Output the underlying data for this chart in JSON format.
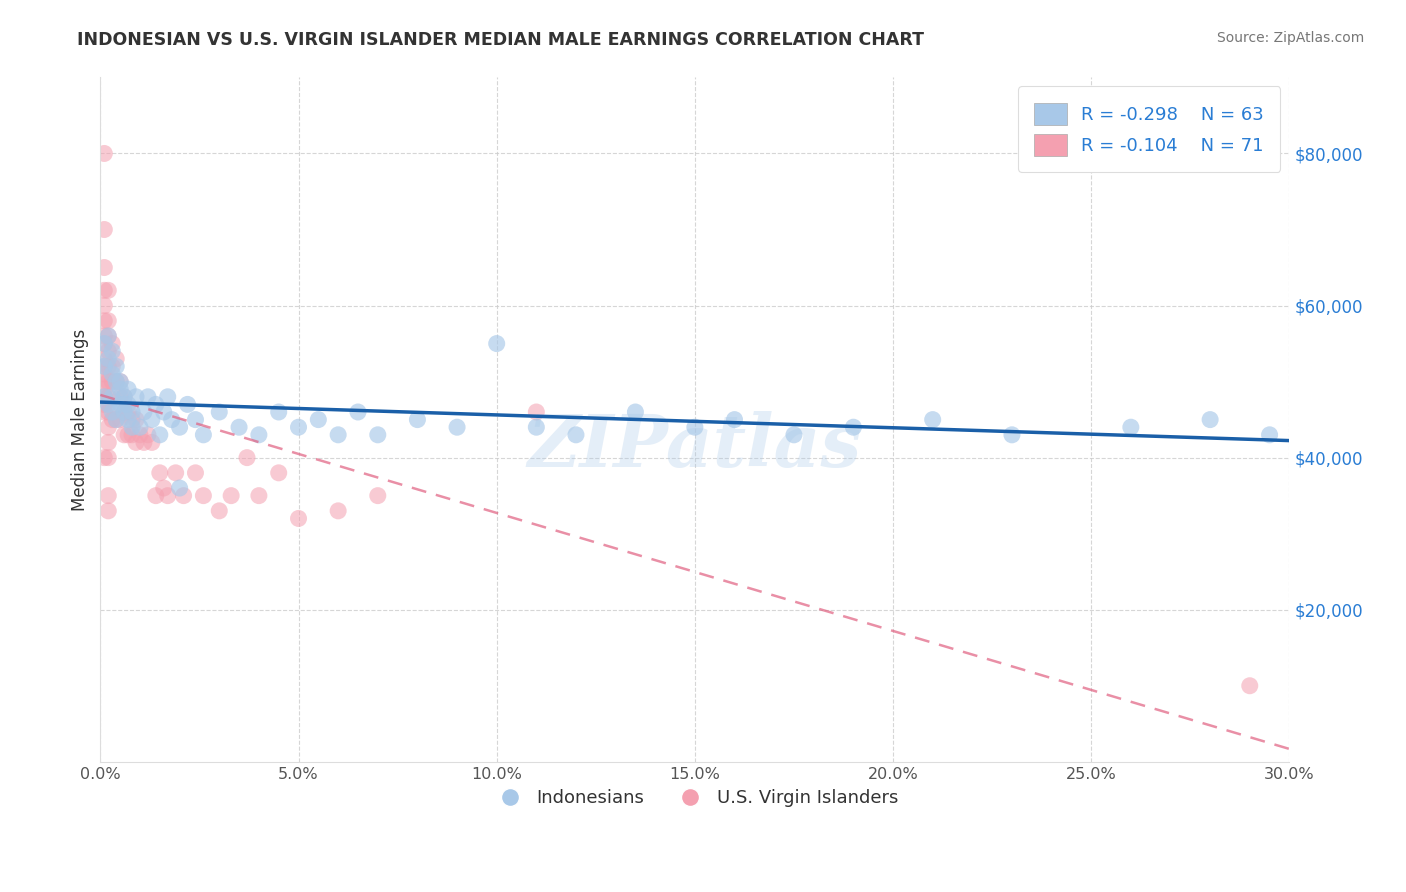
{
  "title": "INDONESIAN VS U.S. VIRGIN ISLANDER MEDIAN MALE EARNINGS CORRELATION CHART",
  "source": "Source: ZipAtlas.com",
  "ylabel": "Median Male Earnings",
  "xlim": [
    0.0,
    0.3
  ],
  "ylim": [
    0,
    90000
  ],
  "yticks": [
    20000,
    40000,
    60000,
    80000
  ],
  "ytick_labels": [
    "$20,000",
    "$40,000",
    "$60,000",
    "$80,000"
  ],
  "xticks": [
    0.0,
    0.05,
    0.1,
    0.15,
    0.2,
    0.25,
    0.3
  ],
  "xtick_labels": [
    "0.0%",
    "5.0%",
    "10.0%",
    "15.0%",
    "20.0%",
    "25.0%",
    "30.0%"
  ],
  "blue_color": "#a8c8e8",
  "pink_color": "#f4a0b0",
  "blue_line_color": "#1a5fa8",
  "pink_line_color": "#e06080",
  "watermark": "ZIPatlas",
  "indonesian_x": [
    0.001,
    0.001,
    0.001,
    0.002,
    0.002,
    0.002,
    0.003,
    0.003,
    0.003,
    0.004,
    0.004,
    0.005,
    0.005,
    0.006,
    0.006,
    0.007,
    0.007,
    0.008,
    0.009,
    0.01,
    0.011,
    0.012,
    0.013,
    0.014,
    0.015,
    0.016,
    0.017,
    0.018,
    0.02,
    0.022,
    0.024,
    0.026,
    0.03,
    0.035,
    0.04,
    0.045,
    0.05,
    0.055,
    0.06,
    0.065,
    0.07,
    0.08,
    0.09,
    0.1,
    0.11,
    0.12,
    0.135,
    0.15,
    0.16,
    0.175,
    0.19,
    0.21,
    0.23,
    0.26,
    0.28,
    0.295,
    0.003,
    0.004,
    0.005,
    0.006,
    0.007,
    0.008,
    0.02
  ],
  "indonesian_y": [
    48000,
    52000,
    55000,
    47000,
    53000,
    56000,
    46000,
    51000,
    54000,
    45000,
    50000,
    47000,
    49000,
    46000,
    48000,
    45000,
    47000,
    46000,
    48000,
    44000,
    46000,
    48000,
    45000,
    47000,
    43000,
    46000,
    48000,
    45000,
    44000,
    47000,
    45000,
    43000,
    46000,
    44000,
    43000,
    46000,
    44000,
    45000,
    43000,
    46000,
    43000,
    45000,
    44000,
    55000,
    44000,
    43000,
    46000,
    44000,
    45000,
    43000,
    44000,
    45000,
    43000,
    44000,
    45000,
    43000,
    48000,
    52000,
    50000,
    47000,
    49000,
    44000,
    36000
  ],
  "usvi_x": [
    0.001,
    0.001,
    0.001,
    0.001,
    0.001,
    0.001,
    0.001,
    0.001,
    0.001,
    0.001,
    0.001,
    0.001,
    0.002,
    0.002,
    0.002,
    0.002,
    0.002,
    0.002,
    0.002,
    0.002,
    0.002,
    0.002,
    0.003,
    0.003,
    0.003,
    0.003,
    0.004,
    0.004,
    0.004,
    0.005,
    0.005,
    0.005,
    0.006,
    0.006,
    0.006,
    0.007,
    0.007,
    0.008,
    0.008,
    0.009,
    0.009,
    0.01,
    0.011,
    0.012,
    0.013,
    0.014,
    0.015,
    0.016,
    0.017,
    0.019,
    0.021,
    0.024,
    0.026,
    0.03,
    0.033,
    0.037,
    0.04,
    0.045,
    0.05,
    0.06,
    0.07,
    0.001,
    0.001,
    0.001,
    0.001,
    0.001,
    0.002,
    0.002,
    0.002,
    0.11,
    0.29
  ],
  "usvi_y": [
    80000,
    70000,
    65000,
    62000,
    60000,
    58000,
    56000,
    55000,
    53000,
    52000,
    51000,
    50000,
    62000,
    58000,
    56000,
    54000,
    52000,
    50000,
    48000,
    46000,
    44000,
    42000,
    55000,
    52000,
    50000,
    45000,
    53000,
    50000,
    45000,
    50000,
    48000,
    45000,
    48000,
    46000,
    43000,
    46000,
    43000,
    45000,
    43000,
    45000,
    42000,
    43000,
    42000,
    43000,
    42000,
    35000,
    38000,
    36000,
    35000,
    38000,
    35000,
    38000,
    35000,
    33000,
    35000,
    40000,
    35000,
    38000,
    32000,
    33000,
    35000,
    49000,
    48000,
    47000,
    46000,
    40000,
    40000,
    35000,
    33000,
    46000,
    10000
  ]
}
